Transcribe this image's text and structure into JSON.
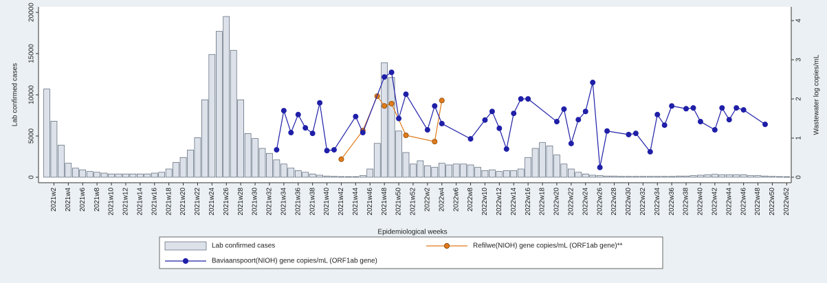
{
  "chart_data": {
    "type": "bar",
    "xlabel": "Epidemiological weeks",
    "ylabel": "Lab  confirmed cases",
    "y2label": "Wastewater log copies/mL",
    "categories": [
      null,
      "2021w2",
      null,
      "2021w4",
      null,
      "2021w6",
      null,
      "2021w8",
      null,
      "2021w10",
      null,
      "2021w12",
      null,
      "2021w14",
      null,
      "2021w16",
      null,
      "2021w18",
      null,
      "2021w20",
      null,
      "2021w22",
      null,
      "2021w24",
      null,
      "2021w26",
      null,
      "2021w28",
      null,
      "2021w30",
      null,
      "2021w32",
      null,
      "2021w34",
      null,
      "2021w36",
      null,
      "2021w38",
      null,
      "2021w40",
      null,
      "2021w42",
      null,
      "2021w44",
      null,
      "2021w46",
      null,
      "2021w48",
      null,
      "2021w50",
      null,
      "2021w52",
      null,
      "2022w2",
      null,
      "2022w4",
      null,
      "2022w6",
      null,
      "2022w8",
      null,
      "2022w10",
      null,
      "2022w12",
      null,
      "2022w14",
      null,
      "2022w16",
      null,
      "2022w18",
      null,
      "2022w20",
      null,
      "2022w22",
      null,
      "2022w24",
      null,
      "2022w26",
      null,
      "2022w28",
      null,
      "2022w30",
      null,
      "2022w32",
      null,
      "2022w34",
      null,
      "2022w36",
      null,
      "2022w38",
      null,
      "2022w40",
      null,
      "2022w42",
      null,
      "2022w44",
      null,
      "2022w46",
      null,
      "2022w48",
      null,
      "2022w50",
      null,
      "2022w52"
    ],
    "series": [
      {
        "name": "Lab  confirmed cases",
        "type": "bar",
        "color": "#dde2ea",
        "values": [
          10700,
          6800,
          3900,
          1700,
          1100,
          900,
          700,
          600,
          500,
          400,
          400,
          400,
          400,
          400,
          400,
          500,
          600,
          1000,
          1800,
          2400,
          3300,
          4800,
          9400,
          14900,
          17700,
          19500,
          15400,
          9400,
          5300,
          4700,
          3500,
          2900,
          2100,
          1600,
          1100,
          800,
          600,
          400,
          250,
          150,
          100,
          80,
          70,
          70,
          200,
          1000,
          4100,
          13900,
          12100,
          5600,
          3000,
          1600,
          2000,
          1400,
          1200,
          1700,
          1500,
          1600,
          1600,
          1500,
          1200,
          800,
          900,
          700,
          800,
          800,
          1000,
          2400,
          3500,
          4200,
          3800,
          2700,
          1600,
          1000,
          600,
          400,
          250,
          200,
          150,
          150,
          100,
          100,
          100,
          100,
          100,
          100,
          100,
          100,
          150,
          150,
          200,
          250,
          300,
          350,
          300,
          300,
          300,
          300,
          200,
          200,
          150,
          100,
          80,
          50
        ]
      },
      {
        "name": "Refilwe(NIOH) gene copies/mL (ORF1ab gene)**",
        "type": "line",
        "axis": "y2",
        "color": "#e07b1a",
        "values": [
          null,
          null,
          null,
          null,
          null,
          null,
          null,
          null,
          null,
          null,
          null,
          null,
          null,
          null,
          null,
          null,
          null,
          null,
          null,
          null,
          null,
          null,
          null,
          null,
          null,
          null,
          null,
          null,
          null,
          null,
          null,
          null,
          null,
          null,
          null,
          null,
          null,
          null,
          null,
          null,
          null,
          0.46,
          null,
          null,
          1.19,
          null,
          2.07,
          1.82,
          1.88,
          null,
          1.07,
          null,
          null,
          null,
          0.91,
          1.96,
          null,
          null,
          null,
          null,
          null,
          null,
          null,
          null,
          null,
          null,
          null,
          null,
          null,
          null,
          null,
          null,
          null,
          null,
          null,
          null,
          null,
          null,
          null,
          null,
          null,
          null,
          null,
          null,
          null,
          null,
          null,
          null,
          null,
          null,
          null,
          null,
          null,
          null,
          null,
          null,
          null,
          null,
          null,
          null,
          null,
          null,
          null,
          null
        ]
      },
      {
        "name": "Baviaanspoort(NIOH) gene copies/mL (ORF1ab gene)",
        "type": "line",
        "axis": "y2",
        "color": "#1f1fa8",
        "values": [
          null,
          null,
          null,
          null,
          null,
          null,
          null,
          null,
          null,
          null,
          null,
          null,
          null,
          null,
          null,
          null,
          null,
          null,
          null,
          null,
          null,
          null,
          null,
          null,
          null,
          null,
          null,
          null,
          null,
          null,
          null,
          null,
          0.7,
          1.7,
          1.14,
          1.6,
          1.26,
          1.12,
          1.9,
          0.68,
          0.7,
          null,
          null,
          1.55,
          1.14,
          null,
          null,
          2.56,
          2.68,
          1.5,
          2.12,
          null,
          null,
          1.21,
          1.82,
          1.37,
          null,
          null,
          null,
          0.98,
          null,
          1.46,
          1.68,
          1.25,
          0.72,
          1.63,
          2.0,
          2.0,
          null,
          null,
          null,
          1.42,
          1.74,
          0.86,
          1.47,
          1.68,
          2.42,
          0.25,
          1.18,
          null,
          null,
          1.09,
          1.12,
          null,
          0.65,
          1.6,
          1.33,
          1.82,
          null,
          1.75,
          1.77,
          1.42,
          null,
          1.21,
          1.77,
          1.47,
          1.77,
          1.72,
          null,
          null,
          1.35,
          null,
          null,
          null
        ]
      }
    ],
    "ylim": [
      0,
      20000
    ],
    "yticks": [
      0,
      5000,
      10000,
      15000,
      20000
    ],
    "y2lim": [
      0,
      4
    ],
    "y2ticks": [
      0,
      1,
      2,
      3,
      4
    ]
  }
}
